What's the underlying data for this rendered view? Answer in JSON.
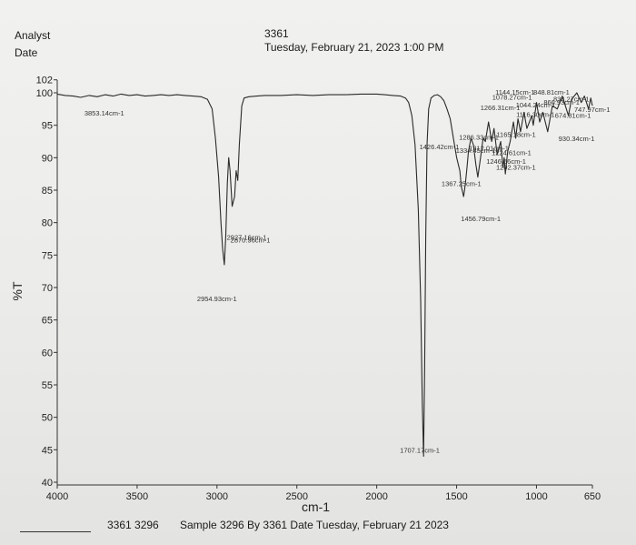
{
  "header": {
    "analyst_label": "Analyst",
    "date_label": "Date",
    "sample_id": "3361",
    "datetime": "Tuesday, February 21, 2023 1:00 PM"
  },
  "footer": {
    "ids": "3361 3296",
    "sample_text": "Sample 3296 By 3361 Date Tuesday, February 21 2023"
  },
  "chart_data": {
    "type": "line",
    "xlabel": "cm-1",
    "ylabel": "%T",
    "xlim": [
      4000,
      650
    ],
    "ylim": [
      40,
      102
    ],
    "x_reversed": true,
    "grid": false,
    "x_ticks": [
      4000,
      3500,
      3000,
      2500,
      2000,
      1500,
      1000,
      650
    ],
    "y_ticks": [
      40,
      45,
      50,
      55,
      60,
      65,
      70,
      75,
      80,
      85,
      90,
      95,
      100,
      102
    ],
    "series": [
      {
        "color": "#2a2a2a",
        "x": [
          4000,
          3950,
          3900,
          3853,
          3800,
          3750,
          3700,
          3650,
          3600,
          3550,
          3500,
          3450,
          3400,
          3350,
          3300,
          3250,
          3200,
          3150,
          3100,
          3060,
          3030,
          3010,
          2990,
          2975,
          2965,
          2954,
          2945,
          2935,
          2927,
          2918,
          2905,
          2890,
          2880,
          2870,
          2860,
          2845,
          2830,
          2800,
          2750,
          2700,
          2600,
          2500,
          2400,
          2300,
          2200,
          2100,
          2000,
          1950,
          1900,
          1850,
          1820,
          1800,
          1780,
          1760,
          1740,
          1725,
          1715,
          1707,
          1700,
          1693,
          1685,
          1675,
          1660,
          1640,
          1620,
          1600,
          1580,
          1560,
          1540,
          1520,
          1500,
          1480,
          1470,
          1456,
          1445,
          1435,
          1426,
          1410,
          1395,
          1380,
          1367,
          1350,
          1334,
          1320,
          1300,
          1280,
          1266,
          1246,
          1224,
          1210,
          1202,
          1195,
          1180,
          1165,
          1144,
          1130,
          1116,
          1100,
          1078,
          1060,
          1044,
          1030,
          1020,
          1000,
          980,
          960,
          930,
          900,
          870,
          838,
          800,
          780,
          747,
          720,
          700,
          674,
          660,
          650
        ],
        "y": [
          99.8,
          99.6,
          99.5,
          99.3,
          99.6,
          99.4,
          99.7,
          99.5,
          99.8,
          99.6,
          99.7,
          99.5,
          99.6,
          99.7,
          99.6,
          99.7,
          99.6,
          99.5,
          99.4,
          99.0,
          97.5,
          93.0,
          87.0,
          80.0,
          76.0,
          73.5,
          78.0,
          86.0,
          90.0,
          88.0,
          82.5,
          84.0,
          88.0,
          86.5,
          92.0,
          98.0,
          99.2,
          99.4,
          99.5,
          99.6,
          99.6,
          99.7,
          99.6,
          99.7,
          99.7,
          99.8,
          99.8,
          99.7,
          99.6,
          99.5,
          99.2,
          98.5,
          96.5,
          92.0,
          82.0,
          68.0,
          52.0,
          44.0,
          58.0,
          78.0,
          92.0,
          97.5,
          99.2,
          99.6,
          99.7,
          99.4,
          98.8,
          97.5,
          96.0,
          93.0,
          90.0,
          88.0,
          85.5,
          84.0,
          86.0,
          88.5,
          91.0,
          93.0,
          92.0,
          89.0,
          87.0,
          90.0,
          93.0,
          92.5,
          95.5,
          92.5,
          94.5,
          90.5,
          92.5,
          88.5,
          90.0,
          87.5,
          91.0,
          92.5,
          95.5,
          93.0,
          96.0,
          94.0,
          97.0,
          94.5,
          95.5,
          96.5,
          95.0,
          98.5,
          95.5,
          97.0,
          94.0,
          98.0,
          97.5,
          99.5,
          96.5,
          99.0,
          100.0,
          98.5,
          99.5,
          97.5,
          99.2,
          98.0
        ]
      }
    ],
    "peak_labels": [
      {
        "text": "3853.14cm-1",
        "x": 3853,
        "y": 99.3
      },
      {
        "text": "2954.93cm-1",
        "x": 2954,
        "y": 73.5
      },
      {
        "text": "2927.16cm-1",
        "x": 2927,
        "y": 90.0
      },
      {
        "text": "2870.96cm-1",
        "x": 2870,
        "y": 86.5
      },
      {
        "text": "1707.17cm-1",
        "x": 1707,
        "y": 44.0
      },
      {
        "text": "1456.79cm-1",
        "x": 1456,
        "y": 84.0
      },
      {
        "text": "1367.25cm-1",
        "x": 1367,
        "y": 87.0
      },
      {
        "text": "1426.42cm-1",
        "x": 1426,
        "y": 91.0
      },
      {
        "text": "1334.45cm-1",
        "x": 1334,
        "y": 93.0
      },
      {
        "text": "1312.01cm-1",
        "x": 1320,
        "y": 92.5
      },
      {
        "text": "1286.33cm-1",
        "x": 1286,
        "y": 92.5
      },
      {
        "text": "1266.31cm-1",
        "x": 1266,
        "y": 94.5
      },
      {
        "text": "1246.56cm-1",
        "x": 1246,
        "y": 90.5
      },
      {
        "text": "1224.61cm-1",
        "x": 1224,
        "y": 92.5
      },
      {
        "text": "1202.37cm-1",
        "x": 1202,
        "y": 90.0
      },
      {
        "text": "1165.18cm-1",
        "x": 1165,
        "y": 92.5
      },
      {
        "text": "1144.15cm-1",
        "x": 1144,
        "y": 95.5
      },
      {
        "text": "1116.30cm-1",
        "x": 1116,
        "y": 96.0
      },
      {
        "text": "1078.27cm-1",
        "x": 1078,
        "y": 97.0
      },
      {
        "text": "1044.24cm-1",
        "x": 1044,
        "y": 95.5
      },
      {
        "text": "930.34cm-1",
        "x": 930,
        "y": 94.0
      },
      {
        "text": "866.93cm-1",
        "x": 870,
        "y": 97.5
      },
      {
        "text": "838.27cm-1",
        "x": 838,
        "y": 99.5
      },
      {
        "text": "848.81cm-1",
        "x": 848,
        "y": 99.0
      },
      {
        "text": "747.97cm-1",
        "x": 747,
        "y": 99.0
      },
      {
        "text": "674.81cm-1",
        "x": 674,
        "y": 99.5
      }
    ]
  }
}
